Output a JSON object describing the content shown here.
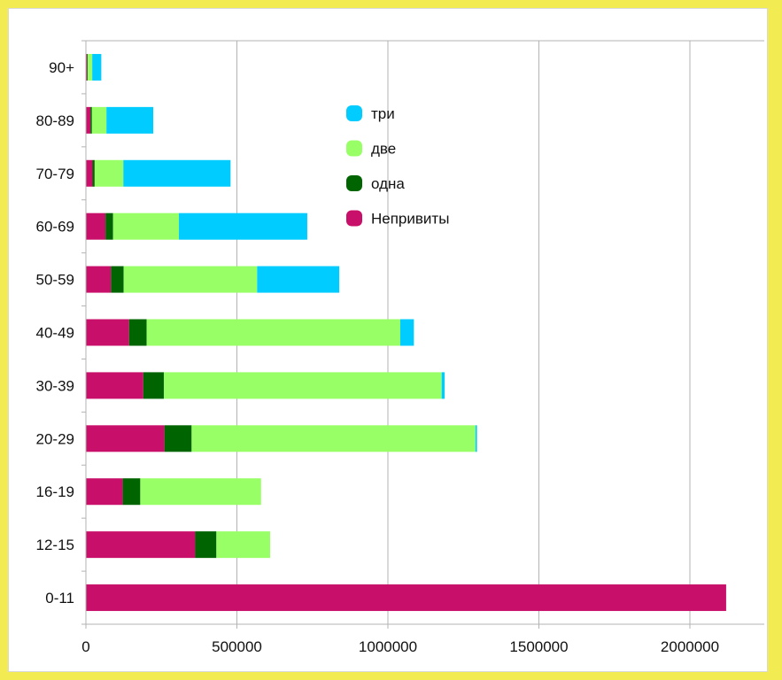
{
  "chart_data": {
    "type": "bar",
    "orientation": "horizontal",
    "stacked": true,
    "categories": [
      "90+",
      "80-89",
      "70-79",
      "60-69",
      "50-59",
      "40-49",
      "30-39",
      "20-29",
      "16-19",
      "12-15",
      "0-11"
    ],
    "series": [
      {
        "name": "Непривиты",
        "color": "#c8106a",
        "values": [
          4000,
          15000,
          22000,
          65000,
          83000,
          143000,
          190000,
          260000,
          122000,
          362000,
          2120000
        ]
      },
      {
        "name": "одна",
        "color": "#006400",
        "values": [
          2000,
          5000,
          7000,
          25000,
          42000,
          58000,
          68000,
          90000,
          58000,
          70000,
          0
        ]
      },
      {
        "name": "две",
        "color": "#99ff66",
        "values": [
          15000,
          48000,
          95000,
          218000,
          442000,
          840000,
          920000,
          940000,
          400000,
          178000,
          0
        ]
      },
      {
        "name": "три",
        "color": "#00ccff",
        "values": [
          30000,
          155000,
          355000,
          425000,
          272000,
          45000,
          10000,
          5000,
          0,
          0,
          0
        ]
      }
    ],
    "xlim": [
      0,
      2250000
    ],
    "x_ticks": [
      0,
      500000,
      1000000,
      1500000,
      2000000
    ],
    "x_tick_labels": [
      "0",
      "500000",
      "1000000",
      "1500000",
      "2000000"
    ],
    "grid": true,
    "legend_position": "top-center",
    "legend_order": [
      "три",
      "две",
      "одна",
      "Непривиты"
    ],
    "title": "",
    "xlabel": "",
    "ylabel": ""
  }
}
